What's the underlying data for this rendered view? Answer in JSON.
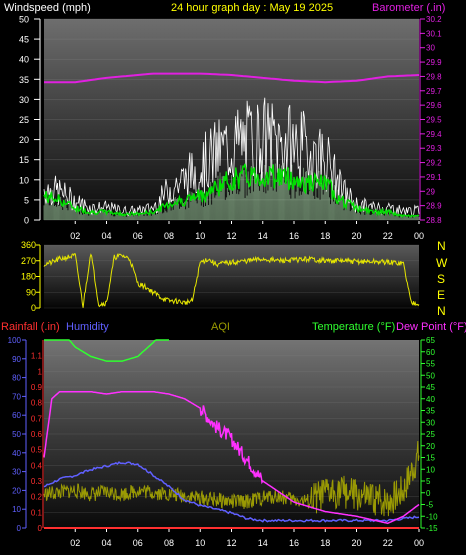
{
  "header": {
    "left_label": "Windspeed (mph)",
    "title": "24 hour graph day : May 19 2025",
    "right_label": "Barometer (.in)"
  },
  "compass": [
    "N",
    "W",
    "S",
    "E",
    "N"
  ],
  "lower_header": {
    "rainfall": "Rainfall (.in)",
    "humidity": "Humidity",
    "aqi": "AQI",
    "temperature": "Temperature (°F)",
    "dewpoint": "Dew Point (°F)"
  },
  "hour_labels": [
    "02",
    "04",
    "06",
    "08",
    "10",
    "12",
    "14",
    "16",
    "18",
    "20",
    "22",
    "00"
  ],
  "colors": {
    "wind": "#ffffff",
    "wind_avg": "#00e000",
    "gust_fill": "#c8ffc8",
    "barometer": "#e020e0",
    "direction": "#e6e600",
    "rain": "#ff3030",
    "humidity": "#6060ff",
    "aqi": "#b0b000",
    "temperature": "#30ff30",
    "dewpoint": "#ff30ff"
  },
  "chart_data": [
    {
      "type": "line",
      "name": "wind-barometer",
      "x_ticks": [
        "02",
        "04",
        "06",
        "08",
        "10",
        "12",
        "14",
        "16",
        "18",
        "20",
        "22",
        "00"
      ],
      "wind_ylim": [
        0,
        50
      ],
      "wind_ticks": [
        0,
        5,
        10,
        15,
        20,
        25,
        30,
        35,
        40,
        45,
        50
      ],
      "baro_ylim": [
        28.8,
        30.2
      ],
      "baro_ticks": [
        "28.8",
        "28.9",
        "29",
        "29.1",
        "29.2",
        "29.3",
        "29.4",
        "29.5",
        "29.6",
        "29.7",
        "29.8",
        "29.9",
        "30",
        "30.1",
        "30.2"
      ],
      "series": [
        {
          "key": "barometer",
          "x": [
            0,
            2,
            4,
            6,
            7,
            8,
            10,
            12,
            14,
            16,
            18,
            20,
            22,
            24
          ],
          "values": [
            29.76,
            29.76,
            29.79,
            29.81,
            29.82,
            29.82,
            29.82,
            29.81,
            29.79,
            29.77,
            29.76,
            29.77,
            29.8,
            29.81
          ]
        },
        {
          "key": "wind_avg",
          "x": [
            0,
            1,
            2,
            3,
            4,
            5,
            6,
            7,
            8,
            9,
            10,
            11,
            12,
            13,
            14,
            15,
            16,
            17,
            18,
            19,
            20,
            21,
            22,
            23,
            24
          ],
          "values": [
            6,
            5,
            3,
            2,
            2,
            1.5,
            1.5,
            2,
            4,
            5,
            6,
            8,
            10,
            11,
            11,
            11,
            10,
            9,
            9,
            5,
            3,
            2,
            2,
            1,
            1
          ]
        },
        {
          "key": "wind_gust",
          "x": [
            0,
            1,
            2,
            3,
            4,
            5,
            6,
            7,
            8,
            9,
            10,
            11,
            12,
            13,
            14,
            15,
            16,
            17,
            18,
            19,
            20,
            21,
            22,
            23,
            24
          ],
          "values": [
            10,
            9,
            6,
            4,
            4,
            3,
            3,
            4,
            10,
            13,
            17,
            21,
            24,
            25,
            26,
            25,
            24,
            22,
            20,
            10,
            5,
            4,
            4,
            3,
            3
          ]
        }
      ]
    },
    {
      "type": "line",
      "name": "wind-direction",
      "ylim": [
        0,
        360
      ],
      "y_ticks": [
        0,
        90,
        180,
        270,
        360
      ],
      "series": [
        {
          "key": "direction",
          "x": [
            0,
            0.5,
            1,
            1.5,
            2,
            2.5,
            3,
            3.5,
            4,
            4.5,
            5,
            5.5,
            6,
            6.5,
            7,
            7.5,
            8,
            8.5,
            9,
            9.5,
            10,
            10.5,
            11,
            12,
            13,
            14,
            15,
            16,
            17,
            18,
            19,
            20,
            21,
            22,
            23,
            23.5,
            24
          ],
          "values": [
            250,
            260,
            280,
            290,
            300,
            10,
            320,
            20,
            30,
            290,
            300,
            280,
            140,
            120,
            90,
            60,
            40,
            40,
            30,
            40,
            260,
            280,
            250,
            260,
            270,
            280,
            270,
            275,
            280,
            270,
            270,
            265,
            265,
            262,
            255,
            30,
            30
          ]
        }
      ]
    },
    {
      "type": "line",
      "name": "rain-humidity-temperature",
      "rain_ylim": [
        0,
        1.2
      ],
      "rain_ticks": [
        "0",
        "0.1",
        "0.2",
        "0.3",
        "0.4",
        "0.5",
        "0.6",
        "0.7",
        "0.8",
        "0.9",
        "1",
        "1.1"
      ],
      "humidity_ylim": [
        0,
        100
      ],
      "humidity_ticks": [
        0,
        10,
        20,
        30,
        40,
        50,
        60,
        70,
        80,
        90,
        100
      ],
      "temp_ylim": [
        -15,
        65
      ],
      "temp_ticks": [
        -15,
        -10,
        -5,
        0,
        5,
        10,
        15,
        20,
        25,
        30,
        35,
        40,
        45,
        50,
        55,
        60,
        65
      ],
      "series": [
        {
          "key": "temperature",
          "x": [
            0,
            1,
            2,
            3,
            4,
            5,
            6,
            7,
            8
          ],
          "values": [
            72,
            70,
            62,
            58,
            56,
            56,
            58,
            64,
            72
          ]
        },
        {
          "key": "humidity",
          "x": [
            0,
            1,
            2,
            3,
            4,
            5,
            6,
            7,
            8,
            9,
            10,
            11,
            12,
            13,
            14,
            15,
            16,
            17,
            18,
            19,
            20,
            21,
            22,
            23,
            24
          ],
          "values": [
            22,
            26,
            28,
            31,
            33,
            35,
            34,
            28,
            22,
            15,
            12,
            10,
            8,
            5,
            4,
            4,
            4,
            4,
            4,
            4,
            4,
            4,
            4,
            5,
            6
          ]
        },
        {
          "key": "dewpoint",
          "x": [
            0,
            0.5,
            1,
            2,
            3,
            4,
            5,
            6,
            7,
            8,
            9,
            10,
            11,
            12,
            12.5,
            13,
            14,
            16,
            18,
            20,
            22,
            23,
            24
          ],
          "values": [
            15,
            40,
            43,
            43,
            43,
            42,
            43,
            43,
            43,
            42,
            40,
            36,
            28,
            23,
            18,
            14,
            5,
            -4,
            -8,
            -10,
            -13,
            -10,
            -5
          ]
        },
        {
          "key": "aqi",
          "x": [
            0,
            1,
            2,
            3,
            4,
            5,
            6,
            7,
            8,
            9,
            10,
            11,
            12,
            13,
            14,
            15,
            16,
            17,
            18,
            19,
            20,
            21,
            22,
            23,
            24
          ],
          "values": [
            18,
            19,
            20,
            18,
            19,
            18,
            20,
            19,
            18,
            17,
            16,
            15,
            14,
            14,
            16,
            17,
            15,
            14,
            18,
            20,
            17,
            15,
            14,
            20,
            40
          ]
        },
        {
          "key": "rain",
          "x": [
            0,
            24
          ],
          "values": [
            0,
            0
          ]
        }
      ]
    }
  ]
}
